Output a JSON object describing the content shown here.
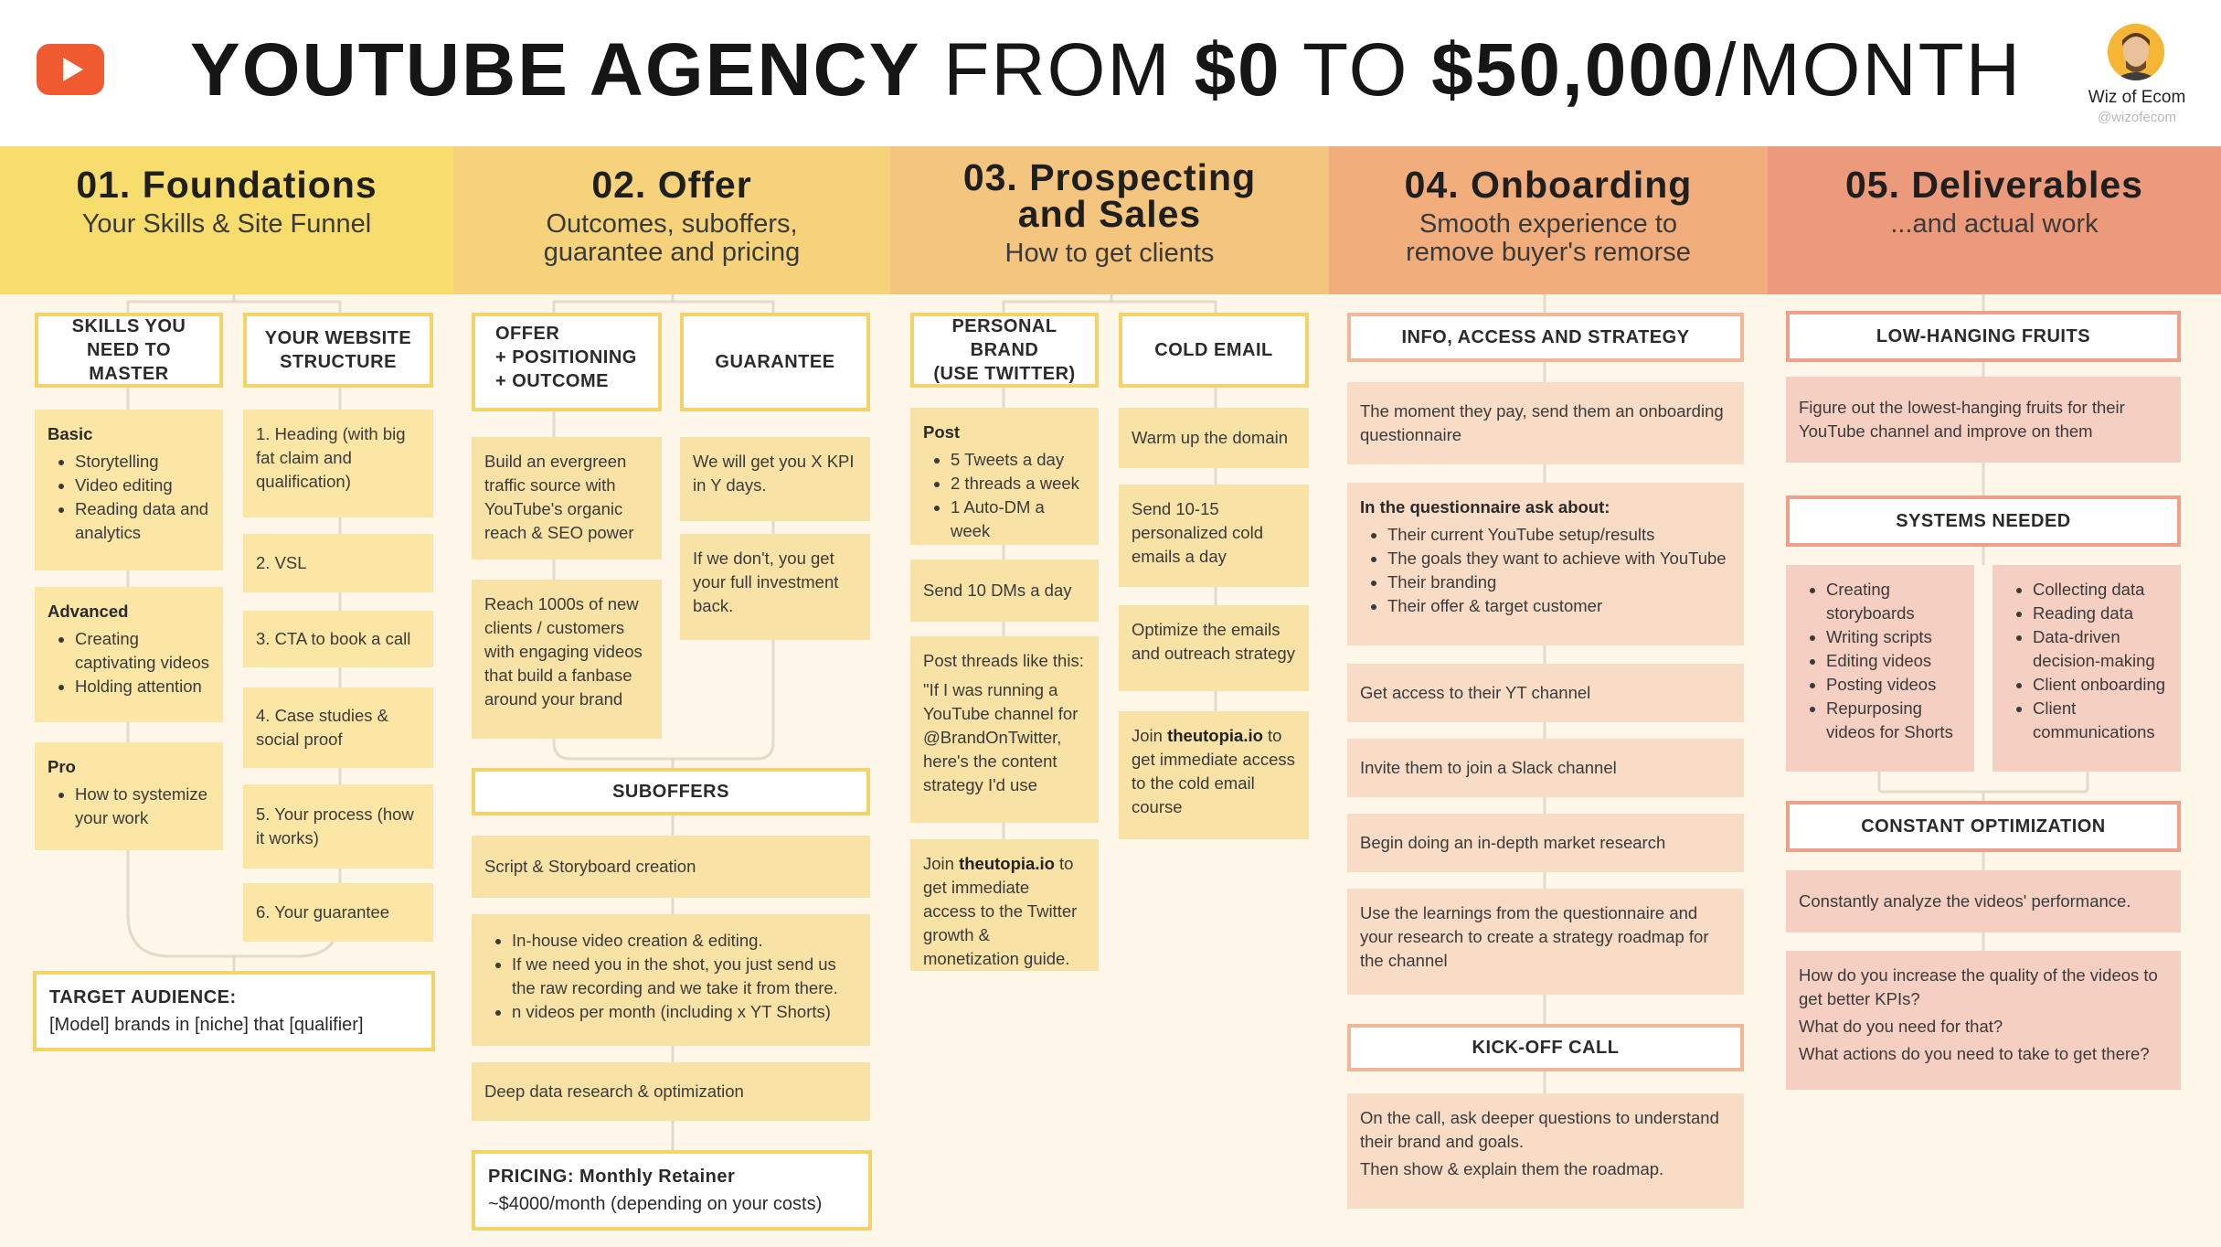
{
  "header": {
    "title_bold_1": "YOUTUBE AGENCY",
    "title_light_1": " FROM ",
    "title_bold_2": "$0",
    "title_light_2": " TO ",
    "title_bold_3": "$50,000",
    "title_light_3": "/MONTH",
    "author": "Wiz of Ecom",
    "handle": "@wizofecom"
  },
  "columns": [
    {
      "title": "01. Foundations",
      "subtitle": "Your Skills & Site Funnel"
    },
    {
      "title": "02. Offer",
      "subtitle": "Outcomes, suboffers, guarantee and pricing"
    },
    {
      "title": "03. Prospecting and Sales",
      "subtitle": "How to get clients"
    },
    {
      "title": "04. Onboarding",
      "subtitle": "Smooth experience to remove buyer's remorse"
    },
    {
      "title": "05. Deliverables",
      "subtitle": "...and actual work"
    }
  ],
  "col1": {
    "skills_header": "SKILLS YOU NEED TO MASTER",
    "website_header": "YOUR WEBSITE STRUCTURE",
    "basic_title": "Basic",
    "basic_items": [
      "Storytelling",
      "Video editing",
      "Reading data and analytics"
    ],
    "advanced_title": "Advanced",
    "advanced_items": [
      "Creating captivating videos",
      "Holding attention"
    ],
    "pro_title": "Pro",
    "pro_items": [
      "How to systemize your work"
    ],
    "site": [
      "1. Heading (with big fat claim and qualification)",
      "2. VSL",
      "3. CTA to book a call",
      "4. Case studies & social proof",
      "5. Your process (how it works)",
      "6. Your guarantee"
    ],
    "target_label": "TARGET AUDIENCE:",
    "target_text": "[Model] brands in [niche] that [qualifier]"
  },
  "col2": {
    "offer_header_1": "OFFER",
    "offer_header_2": "+ POSITIONING",
    "offer_header_3": "+ OUTCOME",
    "guarantee_header": "GUARANTEE",
    "offer_1": "Build an evergreen traffic source with YouTube's organic reach & SEO power",
    "offer_2": "Reach 1000s of new clients / customers with engaging videos that build a fanbase around your brand",
    "guarantee_1": "We will get you X KPI in Y days.",
    "guarantee_2": "If we don't, you get your full investment back.",
    "suboffers_header": "SUBOFFERS",
    "sub_1": "Script & Storyboard creation",
    "sub_2_items": [
      "In-house video creation & editing.",
      "If we need you in the shot, you just send us the raw recording and we take it from there.",
      "n videos per month (including x YT Shorts)"
    ],
    "sub_3": "Deep data research & optimization",
    "pricing_label": "PRICING: Monthly Retainer",
    "pricing_text": "~$4000/month (depending on your costs)"
  },
  "col3": {
    "brand_header_1": "PERSONAL BRAND",
    "brand_header_2": "(USE TWITTER)",
    "cold_header": "COLD EMAIL",
    "post_title": "Post",
    "post_items": [
      "5 Tweets a day",
      "2 threads a week",
      "1 Auto-DM a  week"
    ],
    "dms": "Send 10 DMs a day",
    "threads_1": "Post threads like this:",
    "threads_2": "\"If I was running a YouTube channel for @BrandOnTwitter, here's the content strategy I'd use",
    "join1_pre": "Join ",
    "join1_link": "theutopia.io",
    "join1_post": " to get immediate access to the Twitter growth & monetization guide.",
    "cold_1": "Warm up the domain",
    "cold_2": "Send 10-15 personalized cold emails a day",
    "cold_3": "Optimize the emails and outreach strategy",
    "join2_pre": "Join ",
    "join2_link": "theutopia.io",
    "join2_post": " to get immediate access to the cold email course"
  },
  "col4": {
    "info_header": "INFO, ACCESS AND STRATEGY",
    "step_1": "The moment they pay, send them an onboarding questionnaire",
    "q_title": "In the questionnaire ask about:",
    "q_items": [
      "Their current YouTube setup/results",
      "The goals they want to achieve with YouTube",
      "Their branding",
      "Their offer & target customer"
    ],
    "step_2": "Get access to their YT channel",
    "step_3": "Invite them to join a Slack channel",
    "step_4": "Begin doing an in-depth market research",
    "step_5": "Use the learnings from the questionnaire and your research to create a strategy roadmap for the channel",
    "kickoff_header": "KICK-OFF CALL",
    "kickoff_1": "On the call, ask deeper questions to understand their brand and goals.",
    "kickoff_2": "Then show & explain them the roadmap."
  },
  "col5": {
    "lhf_header": "LOW-HANGING FRUITS",
    "lhf_text": "Figure out the lowest-hanging fruits for their YouTube channel and improve on them",
    "systems_header": "SYSTEMS NEEDED",
    "systems_left": [
      "Creating storyboards",
      "Writing scripts",
      "Editing videos",
      "Posting videos",
      "Repurposing videos for Shorts"
    ],
    "systems_right": [
      "Collecting data",
      "Reading data",
      "Data-driven decision-making",
      "Client onboarding",
      "Client communications"
    ],
    "opt_header": "CONSTANT OPTIMIZATION",
    "opt_1": "Constantly analyze the videos' performance.",
    "opt_2a": "How do you increase the quality of the videos to get better KPIs?",
    "opt_2b": "What do you need for that?",
    "opt_2c": "What actions do you need to take to get there?"
  },
  "colors": {
    "c1": "#f7dc6e",
    "c2": "#f6d27a",
    "c3": "#f4c57e",
    "c4": "#f1ad7c",
    "c5": "#ec9a7c",
    "youtube_red": "#ef5a30"
  }
}
